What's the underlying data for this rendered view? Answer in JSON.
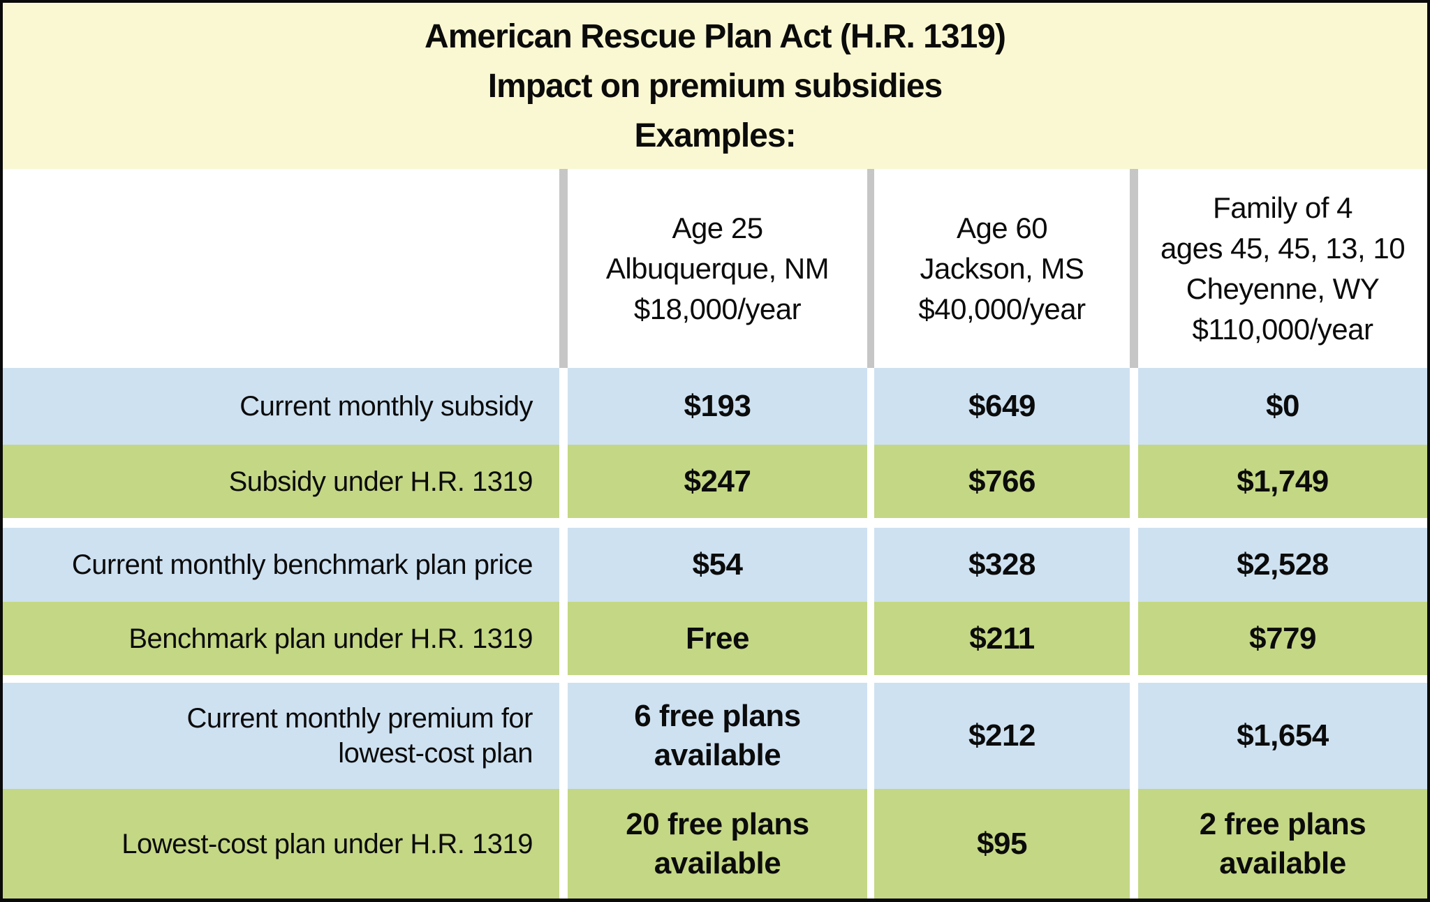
{
  "title": {
    "lines": [
      "American Rescue Plan Act (H.R. 1319)",
      "Impact on premium subsidies",
      "Examples:"
    ]
  },
  "columns": [
    {
      "lines": [
        "Age 25",
        "Albuquerque, NM",
        "$18,000/year"
      ]
    },
    {
      "lines": [
        "Age 60",
        "Jackson, MS",
        "$40,000/year"
      ]
    },
    {
      "lines": [
        "Family of 4",
        "ages 45, 45, 13, 10",
        "Cheyenne, WY",
        "$110,000/year"
      ]
    }
  ],
  "rows": [
    {
      "label_lines": [
        "Current monthly subsidy"
      ],
      "values": [
        [
          "$193"
        ],
        [
          "$649"
        ],
        [
          "$0"
        ]
      ]
    },
    {
      "label_lines": [
        "Subsidy under H.R. 1319"
      ],
      "values": [
        [
          "$247"
        ],
        [
          "$766"
        ],
        [
          "$1,749"
        ]
      ]
    },
    {
      "label_lines": [
        "Current monthly benchmark plan price"
      ],
      "values": [
        [
          "$54"
        ],
        [
          "$328"
        ],
        [
          "$2,528"
        ]
      ]
    },
    {
      "label_lines": [
        "Benchmark plan under H.R. 1319"
      ],
      "values": [
        [
          "Free"
        ],
        [
          "$211"
        ],
        [
          "$779"
        ]
      ]
    },
    {
      "label_lines": [
        "Current monthly premium for",
        "lowest-cost plan"
      ],
      "values": [
        [
          "6 free plans",
          "available"
        ],
        [
          "$212"
        ],
        [
          "$1,654"
        ]
      ]
    },
    {
      "label_lines": [
        "Lowest-cost plan under H.R. 1319"
      ],
      "values": [
        [
          "20 free plans",
          "available"
        ],
        [
          "$95"
        ],
        [
          "2 free plans",
          "available"
        ]
      ]
    }
  ],
  "colors": {
    "title_background": "#FAF8D2",
    "row_blue": "#CEE1F1",
    "row_green": "#C4D785",
    "header_divider_gray": "#C6C6C6",
    "border_black": "#0a0a0a",
    "text": "#0b0b0b"
  },
  "chart_data": {
    "type": "table",
    "title": "American Rescue Plan Act (H.R. 1319) — Impact on premium subsidies — Examples:",
    "columns": [
      "Age 25, Albuquerque, NM, $18,000/year",
      "Age 60, Jackson, MS, $40,000/year",
      "Family of 4, ages 45, 45, 13, 10, Cheyenne, WY, $110,000/year"
    ],
    "rows": [
      {
        "label": "Current monthly subsidy",
        "values": [
          "$193",
          "$649",
          "$0"
        ]
      },
      {
        "label": "Subsidy under H.R. 1319",
        "values": [
          "$247",
          "$766",
          "$1,749"
        ]
      },
      {
        "label": "Current monthly benchmark plan price",
        "values": [
          "$54",
          "$328",
          "$2,528"
        ]
      },
      {
        "label": "Benchmark plan under H.R. 1319",
        "values": [
          "Free",
          "$211",
          "$779"
        ]
      },
      {
        "label": "Current monthly premium for lowest-cost plan",
        "values": [
          "6 free plans available",
          "$212",
          "$1,654"
        ]
      },
      {
        "label": "Lowest-cost plan under H.R. 1319",
        "values": [
          "20 free plans available",
          "$95",
          "2 free plans available"
        ]
      }
    ],
    "layout": "Label column right-aligned; value columns centered; rows striped blue/green in pairs separated by white gaps; pale-yellow title band; gray column dividers in header area"
  }
}
